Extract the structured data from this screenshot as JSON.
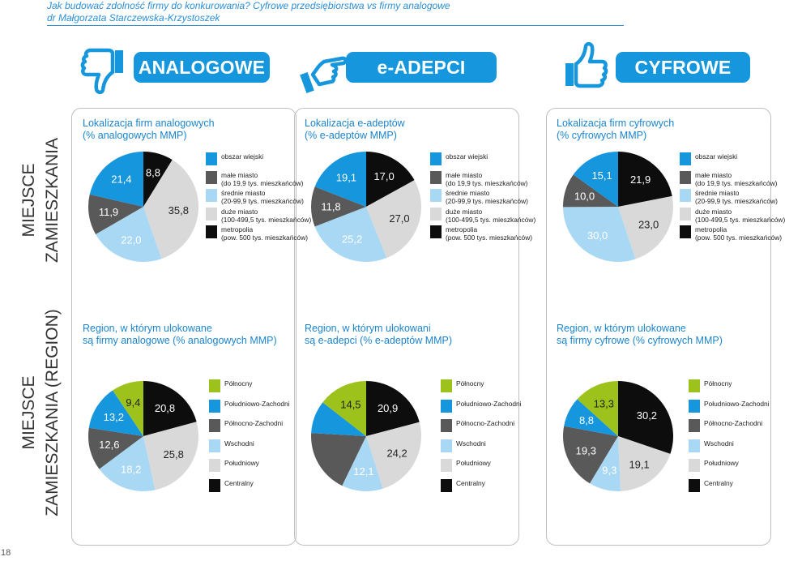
{
  "header": {
    "line1_main": "Jak budować zdolność firmy do konkurowania?",
    "line1_rest": " Cyfrowe przedsiębiorstwa vs firmy analogowe",
    "line2": "dr Małgorzata Starczewska-Krzystoszek"
  },
  "categories": {
    "analog": "ANALOGOWE",
    "adept": "e-ADEPCI",
    "digital": "CYFROWE"
  },
  "side_labels": {
    "location_top": "MIEJSCE",
    "location_bottom": "ZAMIESZKANIA",
    "region_top": "MIEJSCE",
    "region_bottom": "ZAMIESZKANIA (REGION)"
  },
  "page_number": "18",
  "colors": {
    "accent": "#1596dd",
    "blue": "#1596dd",
    "black": "#0d0d0d",
    "lightgray": "#d9d9d9",
    "darkgray": "#595959",
    "lightblue": "#a9d8f5",
    "lime": "#9cc21b"
  },
  "legends": {
    "location": [
      {
        "line1": "obszar wiejski",
        "line2": "",
        "color": "#1596dd"
      },
      {
        "line1": "małe miasto",
        "line2": "(do 19,9 tys. mieszkańców)",
        "color": "#595959"
      },
      {
        "line1": "średnie miasto",
        "line2": "(20-99,9 tys. mieszkańców)",
        "color": "#a9d8f5"
      },
      {
        "line1": "duże miasto",
        "line2": "(100-499,5 tys. mieszkańców)",
        "color": "#d9d9d9"
      },
      {
        "line1": "metropolia",
        "line2": "(pow. 500 tys. mieszkańców)",
        "color": "#0d0d0d"
      }
    ],
    "region": [
      {
        "line1": "Północny",
        "line2": "",
        "color": "#9cc21b"
      },
      {
        "line1": "Południowo-Zachodni",
        "line2": "",
        "color": "#1596dd"
      },
      {
        "line1": "Północno-Zachodni",
        "line2": "",
        "color": "#595959"
      },
      {
        "line1": "Wschodni",
        "line2": "",
        "color": "#a9d8f5"
      },
      {
        "line1": "Południowy",
        "line2": "",
        "color": "#d9d9d9"
      },
      {
        "line1": "Centralny",
        "line2": "",
        "color": "#0d0d0d"
      }
    ]
  },
  "chart_data": [
    {
      "type": "pie",
      "title_line1": "Lokalizacja firm analogowych",
      "title_line2": "(% analogowych MMP)",
      "categories": [
        "metropolia",
        "duże miasto",
        "średnie miasto",
        "małe miasto",
        "obszar wiejski"
      ],
      "values": [
        8.8,
        35.8,
        22.0,
        11.9,
        21.4
      ],
      "labels": [
        "8,8",
        "35,8",
        "22,0",
        "11,9",
        "21,4"
      ],
      "colors": [
        "#0d0d0d",
        "#d9d9d9",
        "#a9d8f5",
        "#595959",
        "#1596dd"
      ]
    },
    {
      "type": "pie",
      "title_line1": "Lokalizacja e-adeptów",
      "title_line2": "(% e-adeptów MMP)",
      "categories": [
        "metropolia",
        "duże miasto",
        "średnie miasto",
        "małe miasto",
        "obszar wiejski"
      ],
      "values": [
        17.0,
        27.0,
        25.2,
        11.8,
        19.1
      ],
      "labels": [
        "17,0",
        "27,0",
        "25,2",
        "11,8",
        "19,1"
      ],
      "colors": [
        "#0d0d0d",
        "#d9d9d9",
        "#a9d8f5",
        "#595959",
        "#1596dd"
      ]
    },
    {
      "type": "pie",
      "title_line1": "Lokalizacja firm cyfrowych",
      "title_line2": "(% cyfrowych MMP)",
      "categories": [
        "metropolia",
        "duże miasto",
        "średnie miasto",
        "małe miasto",
        "obszar wiejski"
      ],
      "values": [
        21.9,
        23.0,
        30.0,
        10.0,
        15.1
      ],
      "labels": [
        "21,9",
        "23,0",
        "30,0",
        "10,0",
        "15,1"
      ],
      "colors": [
        "#0d0d0d",
        "#d9d9d9",
        "#a9d8f5",
        "#595959",
        "#1596dd"
      ]
    },
    {
      "type": "pie",
      "title_line1": "Region, w którym ulokowane",
      "title_line2": "są firmy analogowe (% analogowych MMP)",
      "categories": [
        "Centralny",
        "Południowy",
        "Wschodni",
        "Północno-Zachodni",
        "Południowo-Zachodni",
        "Północny"
      ],
      "values": [
        20.8,
        25.8,
        18.2,
        12.6,
        13.2,
        9.4
      ],
      "labels": [
        "20,8",
        "25,8",
        "18,2",
        "12,6",
        "13,2",
        "9,4"
      ],
      "colors": [
        "#0d0d0d",
        "#d9d9d9",
        "#a9d8f5",
        "#595959",
        "#1596dd",
        "#9cc21b"
      ]
    },
    {
      "type": "pie",
      "title_line1": "Region, w którym ulokowani",
      "title_line2": "są e-adepci (% e-adeptów MMP)",
      "categories": [
        "Centralny",
        "Południowy",
        "Wschodni",
        "Północno-Zachodni",
        "Południowo-Zachodni",
        "Północny"
      ],
      "values": [
        20.9,
        24.2,
        12.1,
        18.7,
        9.6,
        14.5
      ],
      "labels": [
        "20,9",
        "24,2",
        "12,1",
        "",
        "",
        "14,5"
      ],
      "colors": [
        "#0d0d0d",
        "#d9d9d9",
        "#a9d8f5",
        "#595959",
        "#1596dd",
        "#9cc21b"
      ]
    },
    {
      "type": "pie",
      "title_line1": "Region, w którym ulokowane",
      "title_line2": "są firmy cyfrowe (% cyfrowych MMP)",
      "categories": [
        "Centralny",
        "Południowy",
        "Wschodni",
        "Północno-Zachodni",
        "Południowo-Zachodni",
        "Północny"
      ],
      "values": [
        30.2,
        19.1,
        9.3,
        19.3,
        8.8,
        13.3
      ],
      "labels": [
        "30,2",
        "19,1",
        "9,3",
        "19,3",
        "8,8",
        "13,3"
      ],
      "colors": [
        "#0d0d0d",
        "#d9d9d9",
        "#a9d8f5",
        "#595959",
        "#1596dd",
        "#9cc21b"
      ]
    }
  ]
}
